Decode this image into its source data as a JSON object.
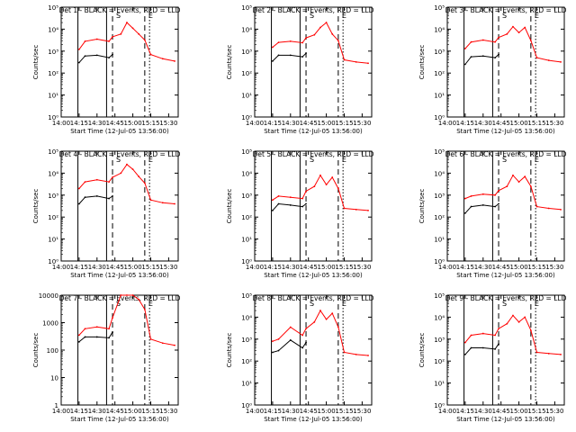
{
  "figure": {
    "start_time_label": "Start Time (12-Jul-05 13:56:00)",
    "ylabel": "Counts/sec",
    "legend_text": "BLACK = Events, RED = LLD",
    "colors": {
      "events": "#000000",
      "lld": "#ff0000",
      "axes": "#000000",
      "background": "#ffffff"
    },
    "x_ticks": [
      "14:00",
      "14:15",
      "14:30",
      "14:45",
      "15:00",
      "15:15",
      "15:30"
    ],
    "markers": [
      "S",
      "E"
    ]
  },
  "chart_data": [
    {
      "type": "line",
      "title": "Det 1",
      "xlabel": "Start Time (12-Jul-05 13:56:00)",
      "ylabel": "Counts/sec",
      "x_unit": "UT",
      "yscale": "log",
      "y_ticks": [
        "10⁰",
        "10¹",
        "10²",
        "10³",
        "10⁴",
        "10⁵"
      ],
      "ylim": [
        1,
        100000
      ],
      "x": [
        "14:15",
        "14:20",
        "14:30",
        "14:40",
        "14:43",
        "14:50",
        "14:55",
        "15:00",
        "15:05",
        "15:10",
        "15:15",
        "15:25",
        "15:35"
      ],
      "series": [
        {
          "name": "Events",
          "values": [
            300,
            600,
            650,
            500,
            700,
            null,
            null,
            null,
            null,
            null,
            null,
            null,
            null
          ]
        },
        {
          "name": "LLD",
          "values": [
            1200,
            2800,
            3500,
            2800,
            4500,
            6000,
            20000,
            11000,
            6000,
            3200,
            700,
            450,
            350
          ]
        }
      ]
    },
    {
      "type": "line",
      "title": "Det 2",
      "xlabel": "Start Time (12-Jul-05 13:56:00)",
      "ylabel": "Counts/sec",
      "x_unit": "UT",
      "yscale": "log",
      "y_ticks": [
        "10⁰",
        "10¹",
        "10²",
        "10³",
        "10⁴",
        "10⁵"
      ],
      "ylim": [
        1,
        100000
      ],
      "x": [
        "14:15",
        "14:20",
        "14:30",
        "14:40",
        "14:43",
        "14:50",
        "14:55",
        "15:00",
        "15:05",
        "15:10",
        "15:15",
        "15:25",
        "15:35"
      ],
      "series": [
        {
          "name": "Events",
          "values": [
            350,
            650,
            650,
            550,
            800,
            null,
            null,
            null,
            null,
            null,
            null,
            null,
            null
          ]
        },
        {
          "name": "LLD",
          "values": [
            1500,
            2500,
            2800,
            2400,
            4000,
            5500,
            12000,
            20000,
            6000,
            3000,
            400,
            320,
            280
          ]
        }
      ]
    },
    {
      "type": "line",
      "title": "Det 3",
      "xlabel": "Start Time (12-Jul-05 13:56:00)",
      "ylabel": "Counts/sec",
      "x_unit": "UT",
      "yscale": "log",
      "y_ticks": [
        "10⁰",
        "10¹",
        "10²",
        "10³",
        "10⁴",
        "10⁵"
      ],
      "ylim": [
        1,
        100000
      ],
      "x": [
        "14:15",
        "14:20",
        "14:30",
        "14:40",
        "14:43",
        "14:50",
        "14:55",
        "15:00",
        "15:05",
        "15:10",
        "15:15",
        "15:25",
        "15:35"
      ],
      "series": [
        {
          "name": "Events",
          "values": [
            250,
            550,
            600,
            500,
            700,
            null,
            null,
            null,
            null,
            null,
            null,
            null,
            null
          ]
        },
        {
          "name": "LLD",
          "values": [
            1300,
            2600,
            3200,
            2600,
            4200,
            6000,
            13000,
            7000,
            12000,
            3000,
            500,
            380,
            320
          ]
        }
      ]
    },
    {
      "type": "line",
      "title": "Det 4",
      "xlabel": "Start Time (12-Jul-05 13:56:00)",
      "ylabel": "Counts/sec",
      "x_unit": "UT",
      "yscale": "log",
      "y_ticks": [
        "10⁰",
        "10¹",
        "10²",
        "10³",
        "10⁴",
        "10⁵"
      ],
      "ylim": [
        1,
        100000
      ],
      "x": [
        "14:15",
        "14:20",
        "14:30",
        "14:40",
        "14:43",
        "14:50",
        "14:55",
        "15:00",
        "15:05",
        "15:10",
        "15:15",
        "15:25",
        "15:35"
      ],
      "series": [
        {
          "name": "Events",
          "values": [
            400,
            800,
            900,
            700,
            900,
            null,
            null,
            null,
            null,
            null,
            null,
            null,
            null
          ]
        },
        {
          "name": "LLD",
          "values": [
            2000,
            4000,
            5000,
            4000,
            6500,
            10000,
            25000,
            15000,
            7000,
            3500,
            600,
            450,
            400
          ]
        }
      ]
    },
    {
      "type": "line",
      "title": "Det 5",
      "xlabel": "Start Time (12-Jul-05 13:56:00)",
      "ylabel": "Counts/sec",
      "x_unit": "UT",
      "yscale": "log",
      "y_ticks": [
        "10⁰",
        "10¹",
        "10²",
        "10³",
        "10⁴",
        "10⁵"
      ],
      "ylim": [
        1,
        100000
      ],
      "x": [
        "14:15",
        "14:20",
        "14:30",
        "14:40",
        "14:43",
        "14:50",
        "14:55",
        "15:00",
        "15:05",
        "15:10",
        "15:15",
        "15:25",
        "15:35"
      ],
      "series": [
        {
          "name": "Events",
          "values": [
            200,
            400,
            350,
            300,
            400,
            null,
            null,
            null,
            null,
            null,
            null,
            null,
            null
          ]
        },
        {
          "name": "LLD",
          "values": [
            600,
            900,
            800,
            700,
            1500,
            2500,
            8000,
            3000,
            6500,
            2000,
            250,
            220,
            200
          ]
        }
      ]
    },
    {
      "type": "line",
      "title": "Det 6",
      "xlabel": "Start Time (12-Jul-05 13:56:00)",
      "ylabel": "Counts/sec",
      "x_unit": "UT",
      "yscale": "log",
      "y_ticks": [
        "10⁰",
        "10¹",
        "10²",
        "10³",
        "10⁴",
        "10⁵"
      ],
      "ylim": [
        1,
        100000
      ],
      "x": [
        "14:15",
        "14:20",
        "14:30",
        "14:40",
        "14:43",
        "14:50",
        "14:55",
        "15:00",
        "15:05",
        "15:10",
        "15:15",
        "15:25",
        "15:35"
      ],
      "series": [
        {
          "name": "Events",
          "values": [
            150,
            300,
            350,
            300,
            400,
            null,
            null,
            null,
            null,
            null,
            null,
            null,
            null
          ]
        },
        {
          "name": "LLD",
          "values": [
            700,
            900,
            1100,
            1000,
            1600,
            2500,
            8000,
            4000,
            7000,
            2500,
            300,
            250,
            220
          ]
        }
      ]
    },
    {
      "type": "line",
      "title": "Det 7",
      "xlabel": "Start Time (12-Jul-05 13:56:00)",
      "ylabel": "Counts/sec",
      "x_unit": "UT",
      "yscale": "log",
      "y_ticks": [
        "1",
        "10",
        "100",
        "1000",
        "10000"
      ],
      "ylim": [
        1,
        10000
      ],
      "x": [
        "14:15",
        "14:20",
        "14:30",
        "14:40",
        "14:43",
        "14:50",
        "14:55",
        "15:00",
        "15:05",
        "15:10",
        "15:15",
        "15:25",
        "15:35"
      ],
      "series": [
        {
          "name": "Events",
          "values": [
            200,
            300,
            300,
            280,
            450,
            null,
            null,
            null,
            null,
            null,
            null,
            null,
            null
          ]
        },
        {
          "name": "LLD",
          "values": [
            350,
            600,
            700,
            600,
            1500,
            10000,
            10000,
            10000,
            7000,
            3000,
            250,
            180,
            150
          ]
        }
      ]
    },
    {
      "type": "line",
      "title": "Det 8",
      "xlabel": "Start Time (12-Jul-05 13:56:00)",
      "ylabel": "Counts/sec",
      "x_unit": "UT",
      "yscale": "log",
      "y_ticks": [
        "10⁰",
        "10¹",
        "10²",
        "10³",
        "10⁴",
        "10⁵"
      ],
      "ylim": [
        1,
        100000
      ],
      "x": [
        "14:15",
        "14:20",
        "14:30",
        "14:40",
        "14:43",
        "14:50",
        "14:55",
        "15:00",
        "15:05",
        "15:10",
        "15:15",
        "15:25",
        "15:35"
      ],
      "series": [
        {
          "name": "Events",
          "values": [
            250,
            300,
            900,
            400,
            700,
            null,
            null,
            null,
            null,
            null,
            null,
            null,
            null
          ]
        },
        {
          "name": "LLD",
          "values": [
            800,
            1000,
            3500,
            1500,
            3000,
            6000,
            20000,
            8000,
            15000,
            3500,
            250,
            200,
            180
          ]
        }
      ]
    },
    {
      "type": "line",
      "title": "Det 9",
      "xlabel": "Start Time (12-Jul-05 13:56:00)",
      "ylabel": "Counts/sec",
      "x_unit": "UT",
      "yscale": "log",
      "y_ticks": [
        "10⁰",
        "10¹",
        "10²",
        "10³",
        "10⁴",
        "10⁵"
      ],
      "ylim": [
        1,
        100000
      ],
      "x": [
        "14:15",
        "14:20",
        "14:30",
        "14:40",
        "14:43",
        "14:50",
        "14:55",
        "15:00",
        "15:05",
        "15:10",
        "15:15",
        "15:25",
        "15:35"
      ],
      "series": [
        {
          "name": "Events",
          "values": [
            200,
            400,
            400,
            350,
            600,
            null,
            null,
            null,
            null,
            null,
            null,
            null,
            null
          ]
        },
        {
          "name": "LLD",
          "values": [
            700,
            1500,
            1800,
            1500,
            3000,
            5000,
            12000,
            6000,
            10000,
            2500,
            250,
            220,
            200
          ]
        }
      ]
    }
  ]
}
